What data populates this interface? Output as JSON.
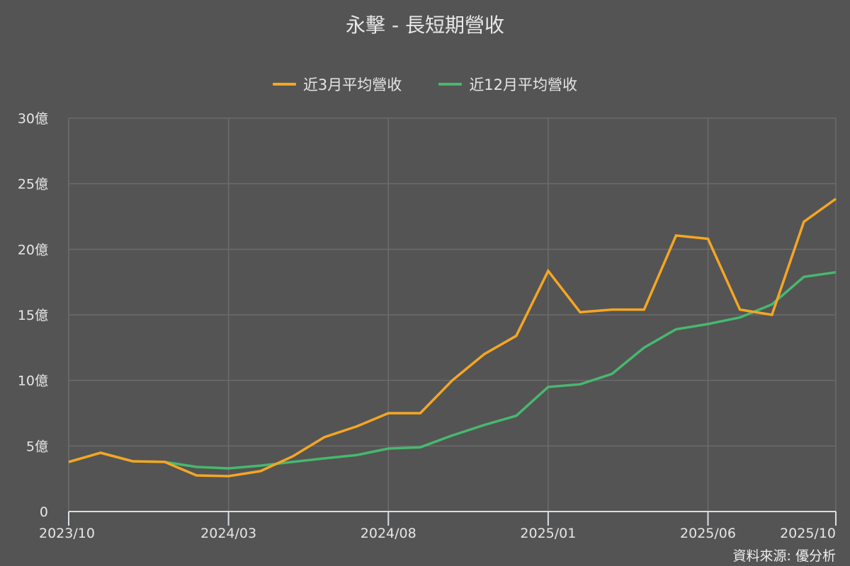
{
  "title": "永擊 - 長短期營收",
  "legend": [
    {
      "label": "近3月平均營收",
      "color": "#f5a623"
    },
    {
      "label": "近12月平均營收",
      "color": "#47b86e"
    }
  ],
  "source": "資料來源: 優分析",
  "colors": {
    "background": "#545454",
    "grid": "#6b6b6b",
    "axis": "#d8dde6",
    "text": "#e6e6e6"
  },
  "chart_data": {
    "type": "line",
    "title": "永擊 - 長短期營收",
    "xlabel": "",
    "ylabel": "",
    "ylim": [
      0,
      30
    ],
    "y_unit": "億",
    "y_ticks": [
      0,
      5,
      10,
      15,
      20,
      25,
      30
    ],
    "y_tick_labels": [
      "0",
      "5億",
      "10億",
      "15億",
      "20億",
      "25億",
      "30億"
    ],
    "x_tick_labels": [
      "2023/10",
      "2024/03",
      "2024/08",
      "2025/01",
      "2025/06",
      "2025/10"
    ],
    "x_tick_indices": [
      0,
      5,
      10,
      15,
      20,
      24
    ],
    "grid": true,
    "legend_position": "top",
    "x": [
      "2023/10",
      "2023/11",
      "2023/12",
      "2024/01",
      "2024/02",
      "2024/03",
      "2024/04",
      "2024/05",
      "2024/06",
      "2024/07",
      "2024/08",
      "2024/09",
      "2024/10",
      "2024/11",
      "2024/12",
      "2025/01",
      "2025/02",
      "2025/03",
      "2025/04",
      "2025/05",
      "2025/06",
      "2025/07",
      "2025/08",
      "2025/09",
      "2025/10"
    ],
    "series": [
      {
        "name": "近3月平均營收",
        "color": "#f5a623",
        "values": [
          3.78,
          4.48,
          3.83,
          3.78,
          2.75,
          2.7,
          3.08,
          4.2,
          5.67,
          6.48,
          7.5,
          7.5,
          10.0,
          12.0,
          13.4,
          18.35,
          15.2,
          15.4,
          15.4,
          21.05,
          20.8,
          15.4,
          15.0,
          22.1,
          23.85
        ]
      },
      {
        "name": "近12月平均營收",
        "color": "#47b86e",
        "values": [
          3.78,
          4.48,
          3.83,
          3.78,
          3.4,
          3.29,
          3.5,
          3.78,
          4.05,
          4.3,
          4.8,
          4.9,
          5.8,
          6.6,
          7.3,
          9.5,
          9.7,
          10.5,
          12.5,
          13.9,
          14.3,
          14.8,
          15.8,
          17.9,
          18.25
        ]
      }
    ]
  }
}
